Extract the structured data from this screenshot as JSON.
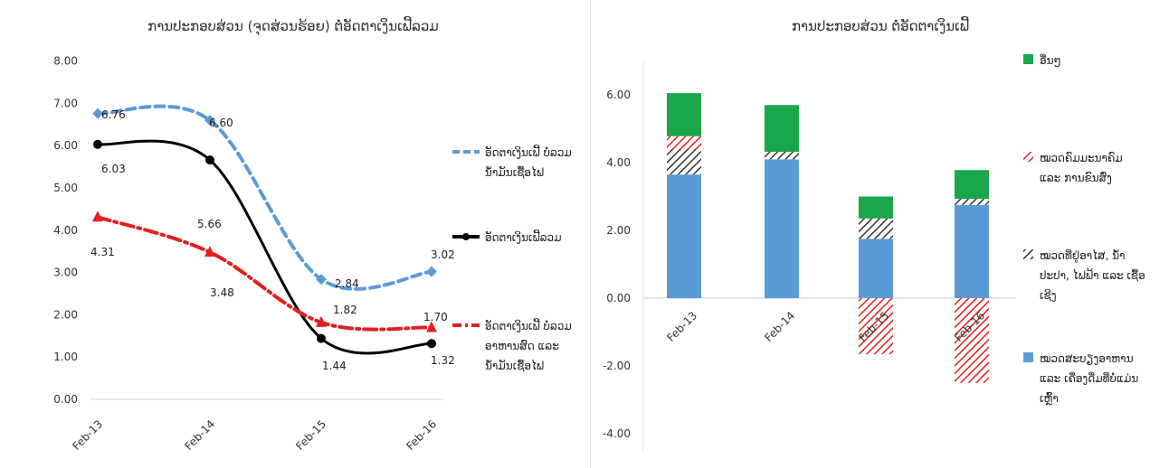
{
  "chart_data": [
    {
      "type": "line",
      "title": "ການປະກອບສ່ວນ (ຈຸດສ່ວນຮ້ອຍ) ຕໍ່ອັດຕາເງິນເຟີ້ລວມ",
      "categories": [
        "Feb-13",
        "Feb-14",
        "Feb-15",
        "Feb-16"
      ],
      "ylim": [
        0,
        8
      ],
      "yticks": [
        "0.00",
        "1.00",
        "2.00",
        "3.00",
        "4.00",
        "5.00",
        "6.00",
        "7.00",
        "8.00"
      ],
      "grid": false,
      "legend": "right",
      "series": [
        {
          "name": "ອັດຕາເງິນເຟີ້ ບໍ່ລວມ ນ້ຳມັນເຊື້ອໄຟ",
          "values": [
            6.76,
            6.6,
            2.84,
            3.02
          ],
          "labels": [
            "6.76",
            "6.60",
            "2.84",
            "3.02"
          ],
          "color": "#5b9bd5",
          "style": "dashed",
          "marker": "diamond"
        },
        {
          "name": "ອັດຕາເງິນເຟີ້ລວມ",
          "values": [
            6.03,
            5.66,
            1.44,
            1.32
          ],
          "labels": [
            "6.03",
            "5.66",
            "1.44",
            "1.32"
          ],
          "color": "#000000",
          "style": "solid",
          "marker": "circle"
        },
        {
          "name": "ອັດຕາເງິນເຟີ້ ບໍ່ລວມ ອາຫານສົດ ແລະ ນ້ຳມັນເຊື້ອໄຟ",
          "values": [
            4.31,
            3.48,
            1.82,
            1.7
          ],
          "labels": [
            "4.31",
            "3.48",
            "1.82",
            "1.70"
          ],
          "color": "#e02020",
          "style": "dashdot",
          "marker": "triangle"
        }
      ]
    },
    {
      "type": "bar",
      "stacked": true,
      "title": "ການປະກອບສ່ວນ ຕໍ່ອັດຕາເງິນເຟີ້",
      "categories": [
        "Feb-13",
        "Feb-14",
        "Feb-15",
        "Feb-16"
      ],
      "ylim": [
        -4,
        7
      ],
      "yticks": [
        "-4.00",
        "-2.00",
        "0.00",
        "2.00",
        "4.00",
        "6.00"
      ],
      "grid": false,
      "legend": "right",
      "series": [
        {
          "name": "ໝວດສະບຽງອາຫານ ແລະ ເຄື່ອງດື່ມທີ່ບໍ່ແມ່ນເຫຼົ້າ",
          "values": [
            3.65,
            4.1,
            1.75,
            2.75
          ],
          "color": "#5b9bd5",
          "pattern": "solid"
        },
        {
          "name": "ໝວດທີ່ຢູ່ອາໄສ, ນ້ຳປະປາ, ໄຟຟ້າ ແລະ ເຊື້ອເຊີງ",
          "values": [
            0.75,
            0.22,
            0.6,
            0.18
          ],
          "color": "#333333",
          "pattern": "hatch"
        },
        {
          "name": "ໝວດຄົມມະນາຄົມ ແລະ ການຂົນສົ່ງ",
          "values": [
            0.38,
            0,
            -1.65,
            -2.5
          ],
          "color": "#e02020",
          "pattern": "hatch"
        },
        {
          "name": "ອື່ນໆ",
          "values": [
            1.27,
            1.38,
            0.65,
            0.85
          ],
          "color": "#1aa64b",
          "pattern": "solid"
        }
      ]
    }
  ],
  "legend_left": [
    [
      "ອັດຕາເງິນເຟີ້ ບໍ່ລວມ",
      "ນ້ຳມັນເຊື້ອໄຟ"
    ],
    [
      "ອັດຕາເງິນເຟີ້ລວມ"
    ],
    [
      "ອັດຕາເງິນເຟີ້ ບໍ່ລວມ",
      "ອາຫານສົດ ແລະ",
      "ນ້ຳມັນເຊື້ອໄຟ"
    ]
  ],
  "legend_right": [
    [
      "ອື່ນໆ"
    ],
    [
      "ໝວດຄົມມະນາຄົມ",
      "ແລະ ການຂົນສົ່ງ"
    ],
    [
      "ໝວດທີ່ຢູ່ອາໄສ, ນ້ຳ",
      "ປະປາ, ໄຟຟ້າ ແລະ ເຊື້ອ",
      "ເຊີງ"
    ],
    [
      "ໝວດສະບຽງອາຫານ",
      "ແລະ ເຄື່ອງດື່ມທີ່ບໍ່ແມ່ນ",
      "ເຫຼົ້າ"
    ]
  ]
}
